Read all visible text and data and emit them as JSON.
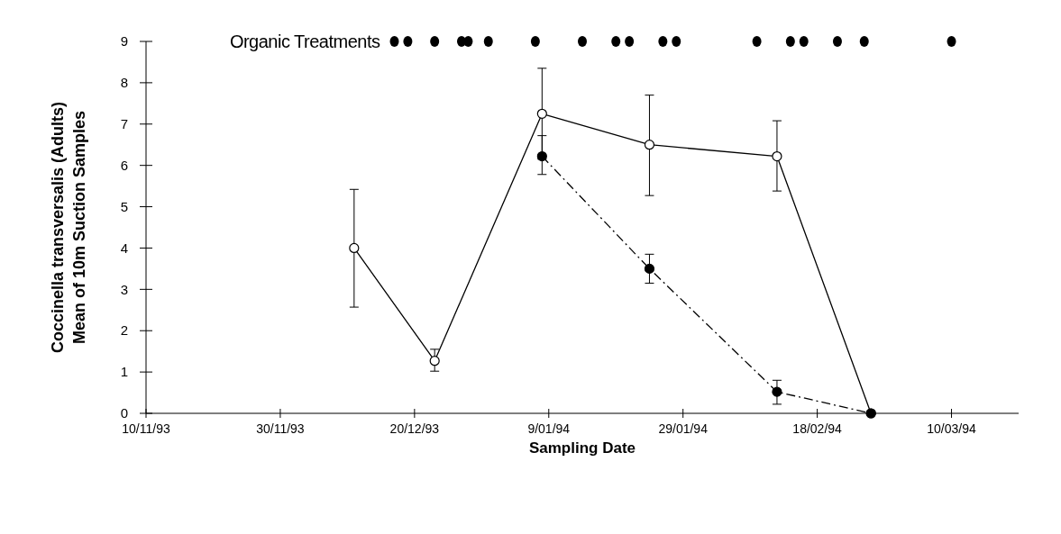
{
  "chart_data": {
    "type": "line",
    "xlabel": "Sampling Date",
    "ylabel": "Coccinella transversalis (Adults) Mean of 10m Suction Samples",
    "xlim": [
      "1993-11-10",
      "1994-03-20"
    ],
    "xticks": [
      {
        "value": "1993-11-10",
        "label": "10/11/93"
      },
      {
        "value": "1993-11-30",
        "label": "30/11/93"
      },
      {
        "value": "1993-12-20",
        "label": "20/12/93"
      },
      {
        "value": "1994-01-09",
        "label": "9/01/94"
      },
      {
        "value": "1994-01-29",
        "label": "29/01/94"
      },
      {
        "value": "1994-02-18",
        "label": "18/02/94"
      },
      {
        "value": "1994-03-10",
        "label": "10/03/94"
      }
    ],
    "ylim": [
      0,
      9
    ],
    "yticks": [
      0,
      1,
      2,
      3,
      4,
      5,
      6,
      7,
      8,
      9
    ],
    "grid": false,
    "marker": "circle",
    "series": [
      {
        "color": "#000000",
        "line_style": "solid",
        "x": [
          "1993-12-11",
          "1993-12-23",
          "1994-01-08",
          "1994-01-24",
          "1994-02-12",
          "1994-02-26"
        ],
        "values": [
          4.0,
          1.27,
          7.25,
          6.5,
          6.22,
          0
        ],
        "errors": [
          [
            2.57,
            5.42
          ],
          [
            1.02,
            1.55
          ],
          [
            6.15,
            8.35
          ],
          [
            5.27,
            7.7
          ],
          [
            5.38,
            7.08
          ],
          null
        ]
      },
      {
        "color": "#000000",
        "line_style": "dashed",
        "x": [
          "1994-01-08",
          "1994-01-24",
          "1994-02-12",
          "1994-02-26"
        ],
        "values": [
          6.22,
          3.5,
          0.52,
          0
        ],
        "errors": [
          [
            5.78,
            6.72
          ],
          [
            3.15,
            3.85
          ],
          [
            0.22,
            0.8
          ],
          null
        ]
      },
      {
        "type": "scatter",
        "name": "Organic Treatments",
        "color": "#000000",
        "x": [
          "1993-12-17",
          "1993-12-19",
          "1993-12-23",
          "1993-12-27",
          "1993-12-28",
          "1993-12-31",
          "1994-01-07",
          "1994-01-14",
          "1994-01-19",
          "1994-01-21",
          "1994-01-26",
          "1994-01-28",
          "1994-02-09",
          "1994-02-14",
          "1994-02-16",
          "1994-02-21",
          "1994-02-25",
          "1994-03-10"
        ],
        "values": [
          9,
          9,
          9,
          9,
          9,
          9,
          9,
          9,
          9,
          9,
          9,
          9,
          9,
          9,
          9,
          9,
          9,
          9
        ]
      }
    ]
  }
}
